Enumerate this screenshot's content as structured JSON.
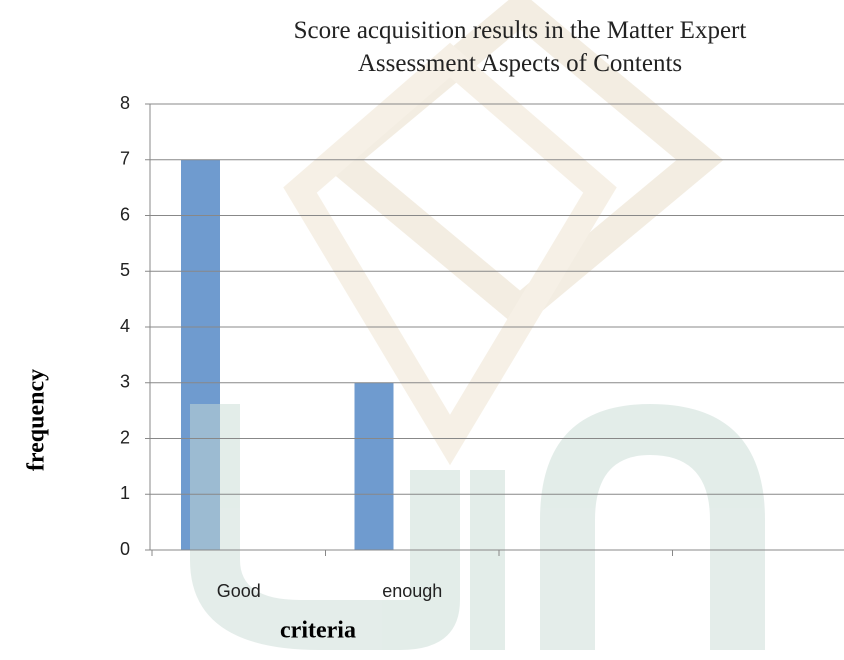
{
  "chart_data": {
    "type": "bar",
    "title": "Score acquisition results in the Matter Expert Assessment Aspects of Contents",
    "x_label": "criteria",
    "y_label": "frequency",
    "categories": [
      "Good",
      "enough",
      null,
      null
    ],
    "values": [
      7,
      3,
      null,
      null
    ],
    "color": "#6f9bcf",
    "ylim": [
      0,
      8
    ],
    "yticks": [
      0,
      1,
      2,
      3,
      4,
      5,
      6,
      7,
      8
    ],
    "grid": true
  }
}
